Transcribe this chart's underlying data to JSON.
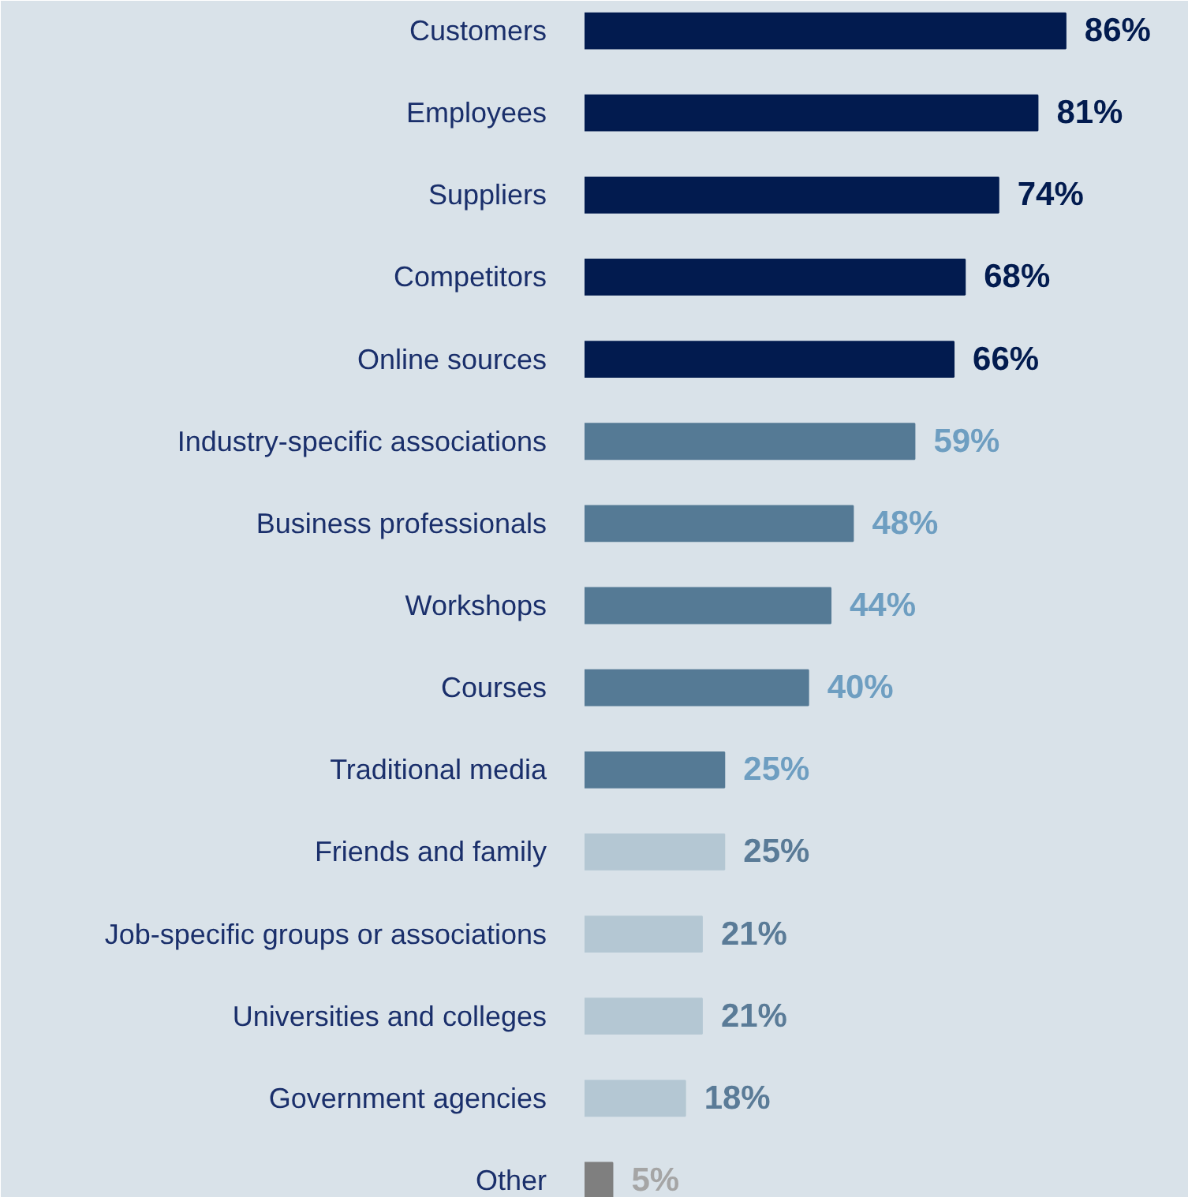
{
  "chart_data": {
    "type": "bar",
    "orientation": "horizontal",
    "value_labels": [
      "86%",
      "81%",
      "74%",
      "68%",
      "66%",
      "59%",
      "48%",
      "44%",
      "40%",
      "25%",
      "25%",
      "21%",
      "21%",
      "18%",
      "5%"
    ],
    "categories": [
      "Customers",
      "Employees",
      "Suppliers",
      "Competitors",
      "Online sources",
      "Industry-specific associations",
      "Business professionals",
      "Workshops",
      "Courses",
      "Traditional media",
      "Friends and family",
      "Job-specific groups or associations",
      "Universities and colleges",
      "Government agencies",
      "Other"
    ],
    "values": [
      86,
      81,
      74,
      68,
      66,
      59,
      48,
      44,
      40,
      25,
      25,
      21,
      21,
      18,
      5
    ],
    "colors": [
      "#021b4f",
      "#021b4f",
      "#021b4f",
      "#021b4f",
      "#021b4f",
      "#557a95",
      "#557a95",
      "#557a95",
      "#557a95",
      "#557a95",
      "#b4c7d3",
      "#b4c7d3",
      "#b4c7d3",
      "#b4c7d3",
      "#7f7f7f"
    ],
    "grid": false
  }
}
